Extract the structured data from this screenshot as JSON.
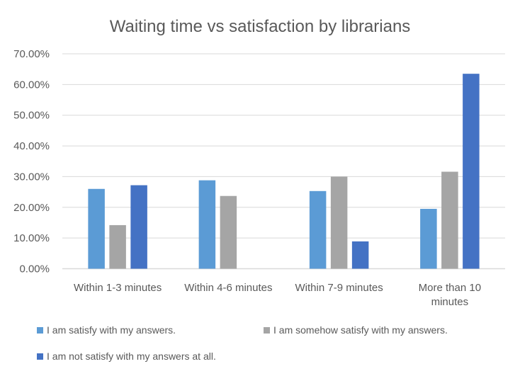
{
  "chart_data": {
    "type": "bar",
    "title": "Waiting time vs satisfaction by librarians",
    "xlabel": "",
    "ylabel": "",
    "categories": [
      "Within 1-3 minutes",
      "Within 4-6 minutes",
      "Within 7-9 minutes",
      "More than 10 minutes"
    ],
    "category_lines": [
      [
        "Within 1-3 minutes"
      ],
      [
        "Within 4-6 minutes"
      ],
      [
        "Within 7-9 minutes"
      ],
      [
        "More than 10",
        "minutes"
      ]
    ],
    "series": [
      {
        "name": "I am satisfy with my answers.",
        "color": "#5B9BD5",
        "values": [
          26.0,
          28.8,
          25.3,
          19.5
        ]
      },
      {
        "name": "I am somehow satisfy with my answers.",
        "color": "#A5A5A5",
        "values": [
          14.2,
          23.7,
          30.0,
          31.6
        ]
      },
      {
        "name": "I am not satisfy with my answers at all.",
        "color": "#4472C4",
        "values": [
          27.2,
          0,
          8.9,
          63.5
        ]
      }
    ],
    "ylim": [
      0,
      70
    ],
    "yticks": [
      0,
      10,
      20,
      30,
      40,
      50,
      60,
      70
    ],
    "ytick_labels": [
      "0.00%",
      "10.00%",
      "20.00%",
      "30.00%",
      "40.00%",
      "50.00%",
      "60.00%",
      "70.00%"
    ],
    "grid": true,
    "legend_position": "bottom"
  }
}
